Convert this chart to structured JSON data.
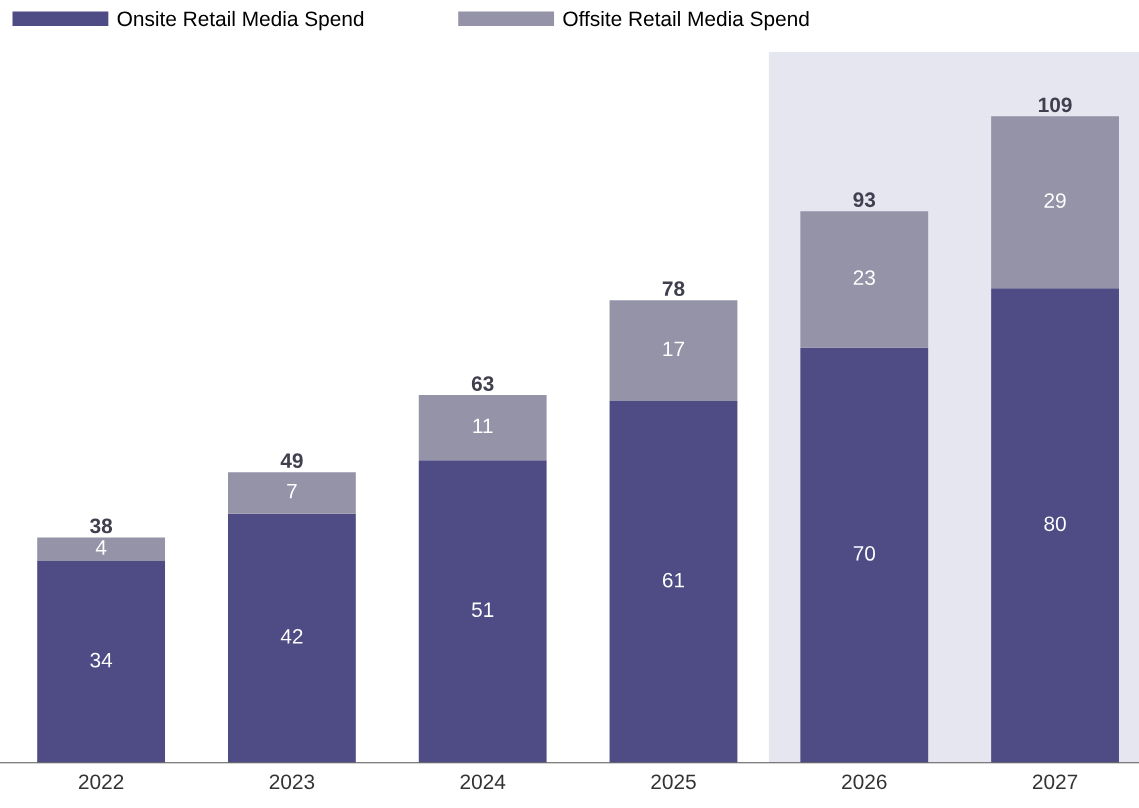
{
  "chart_data": {
    "type": "bar",
    "stacked": true,
    "categories": [
      "2022",
      "2023",
      "2024",
      "2025",
      "2026",
      "2027"
    ],
    "series": [
      {
        "name": "Onsite Retail Media Spend",
        "color": "#4e4b85",
        "values": [
          34,
          42,
          51,
          61,
          70,
          80
        ]
      },
      {
        "name": "Offsite Retail Media Spend",
        "color": "#9593a8",
        "values": [
          4,
          7,
          11,
          17,
          23,
          29
        ]
      }
    ],
    "totals": [
      "38",
      "49",
      "63",
      "78",
      "93",
      "109"
    ],
    "data_labels": true,
    "bands": [
      {
        "axis": "x",
        "from": "2026",
        "to": "2027",
        "color": "#e6e6f0"
      }
    ],
    "legend": "top left",
    "grid": false
  }
}
